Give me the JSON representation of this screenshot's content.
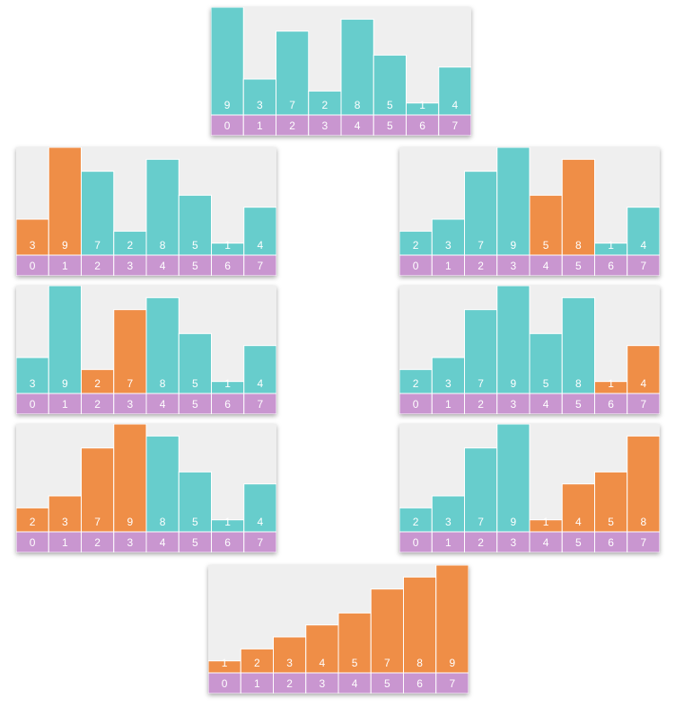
{
  "colors": {
    "unsorted": "#67CDCC",
    "sorted": "#EF8E47",
    "index_row": "#C996D0",
    "panel_background": "#EFEFEF",
    "divider": "#FFFFFF"
  },
  "max_value": 9,
  "panels": [
    {
      "id": "step-0",
      "values": [
        9,
        3,
        7,
        2,
        8,
        5,
        1,
        4
      ],
      "highlight": [
        false,
        false,
        false,
        false,
        false,
        false,
        false,
        false
      ]
    },
    {
      "id": "step-1",
      "values": [
        3,
        9,
        7,
        2,
        8,
        5,
        1,
        4
      ],
      "highlight": [
        true,
        true,
        false,
        false,
        false,
        false,
        false,
        false
      ]
    },
    {
      "id": "step-2",
      "values": [
        3,
        9,
        2,
        7,
        8,
        5,
        1,
        4
      ],
      "highlight": [
        false,
        false,
        true,
        true,
        false,
        false,
        false,
        false
      ]
    },
    {
      "id": "step-3",
      "values": [
        2,
        3,
        7,
        9,
        8,
        5,
        1,
        4
      ],
      "highlight": [
        true,
        true,
        true,
        true,
        false,
        false,
        false,
        false
      ]
    },
    {
      "id": "step-4",
      "values": [
        2,
        3,
        7,
        9,
        5,
        8,
        1,
        4
      ],
      "highlight": [
        false,
        false,
        false,
        false,
        true,
        true,
        false,
        false
      ]
    },
    {
      "id": "step-5",
      "values": [
        2,
        3,
        7,
        9,
        5,
        8,
        1,
        4
      ],
      "highlight": [
        false,
        false,
        false,
        false,
        false,
        false,
        true,
        true
      ]
    },
    {
      "id": "step-6",
      "values": [
        2,
        3,
        7,
        9,
        1,
        4,
        5,
        8
      ],
      "highlight": [
        false,
        false,
        false,
        false,
        true,
        true,
        true,
        true
      ]
    },
    {
      "id": "step-7",
      "values": [
        1,
        2,
        3,
        4,
        5,
        7,
        8,
        9
      ],
      "highlight": [
        true,
        true,
        true,
        true,
        true,
        true,
        true,
        true
      ]
    }
  ],
  "indices": [
    "0",
    "1",
    "2",
    "3",
    "4",
    "5",
    "6",
    "7"
  ]
}
